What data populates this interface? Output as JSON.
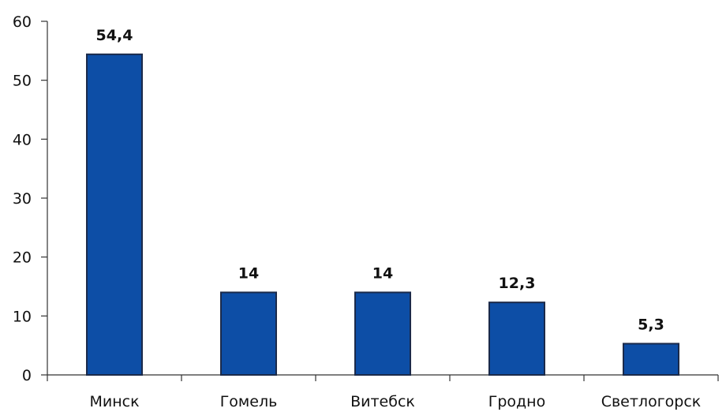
{
  "chart_data": {
    "type": "bar",
    "title": "",
    "xlabel": "",
    "ylabel": "",
    "categories": [
      "Минск",
      "Гомель",
      "Витебск",
      "Гродно",
      "Светлогорск"
    ],
    "values": [
      54.4,
      14,
      14,
      12.3,
      5.3
    ],
    "data_labels": [
      "54,4",
      "14",
      "14",
      "12,3",
      "5,3"
    ],
    "ylim": [
      0,
      60
    ],
    "yticks": [
      0,
      10,
      20,
      30,
      40,
      50,
      60
    ],
    "bar_color": "#0d4ea6",
    "grid": false,
    "legend": "none"
  }
}
